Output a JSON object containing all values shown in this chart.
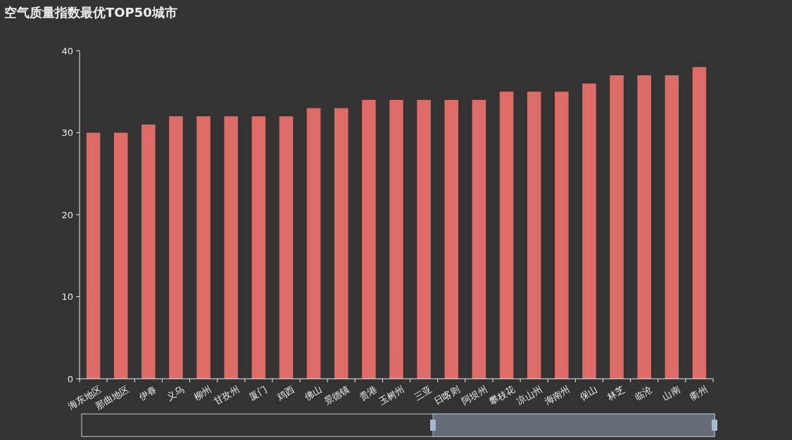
{
  "chart_data": {
    "type": "bar",
    "title": "空气质量指数最优TOP50城市",
    "categories": [
      "海东地区",
      "那曲地区",
      "伊春",
      "义乌",
      "柳州",
      "甘孜州",
      "厦门",
      "鸡西",
      "佛山",
      "景德镇",
      "贵港",
      "玉树州",
      "三亚",
      "日喀则",
      "阿坝州",
      "攀枝花",
      "凉山州",
      "海南州",
      "保山",
      "林芝",
      "临沧",
      "山南",
      "衢州"
    ],
    "values": [
      30,
      30,
      31,
      32,
      32,
      32,
      32,
      32,
      33,
      33,
      34,
      34,
      34,
      34,
      34,
      35,
      35,
      35,
      36,
      37,
      37,
      37,
      38
    ],
    "color": "#dd6b66",
    "ylim": [
      0,
      40
    ],
    "yticks": [
      0,
      10,
      20,
      30,
      40
    ]
  }
}
